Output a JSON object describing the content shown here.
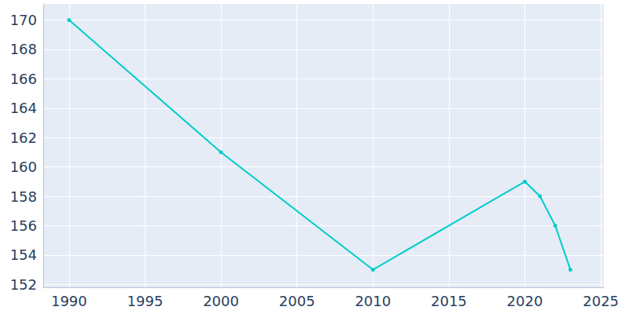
{
  "chart_data": {
    "type": "line",
    "x": [
      1990,
      2000,
      2010,
      2020,
      2021,
      2022,
      2023
    ],
    "values": [
      170,
      161,
      153,
      159,
      158,
      156,
      153
    ],
    "color": "#00cccc",
    "marker": "circle",
    "xlim": [
      1988.3,
      2025.2
    ],
    "xticks": [
      1990,
      1995,
      2000,
      2005,
      2010,
      2015,
      2020,
      2025
    ],
    "ylim": [
      151.8,
      171.1
    ],
    "yticks": [
      152,
      154,
      156,
      158,
      160,
      162,
      164,
      166,
      168,
      170
    ],
    "grid": true
  }
}
